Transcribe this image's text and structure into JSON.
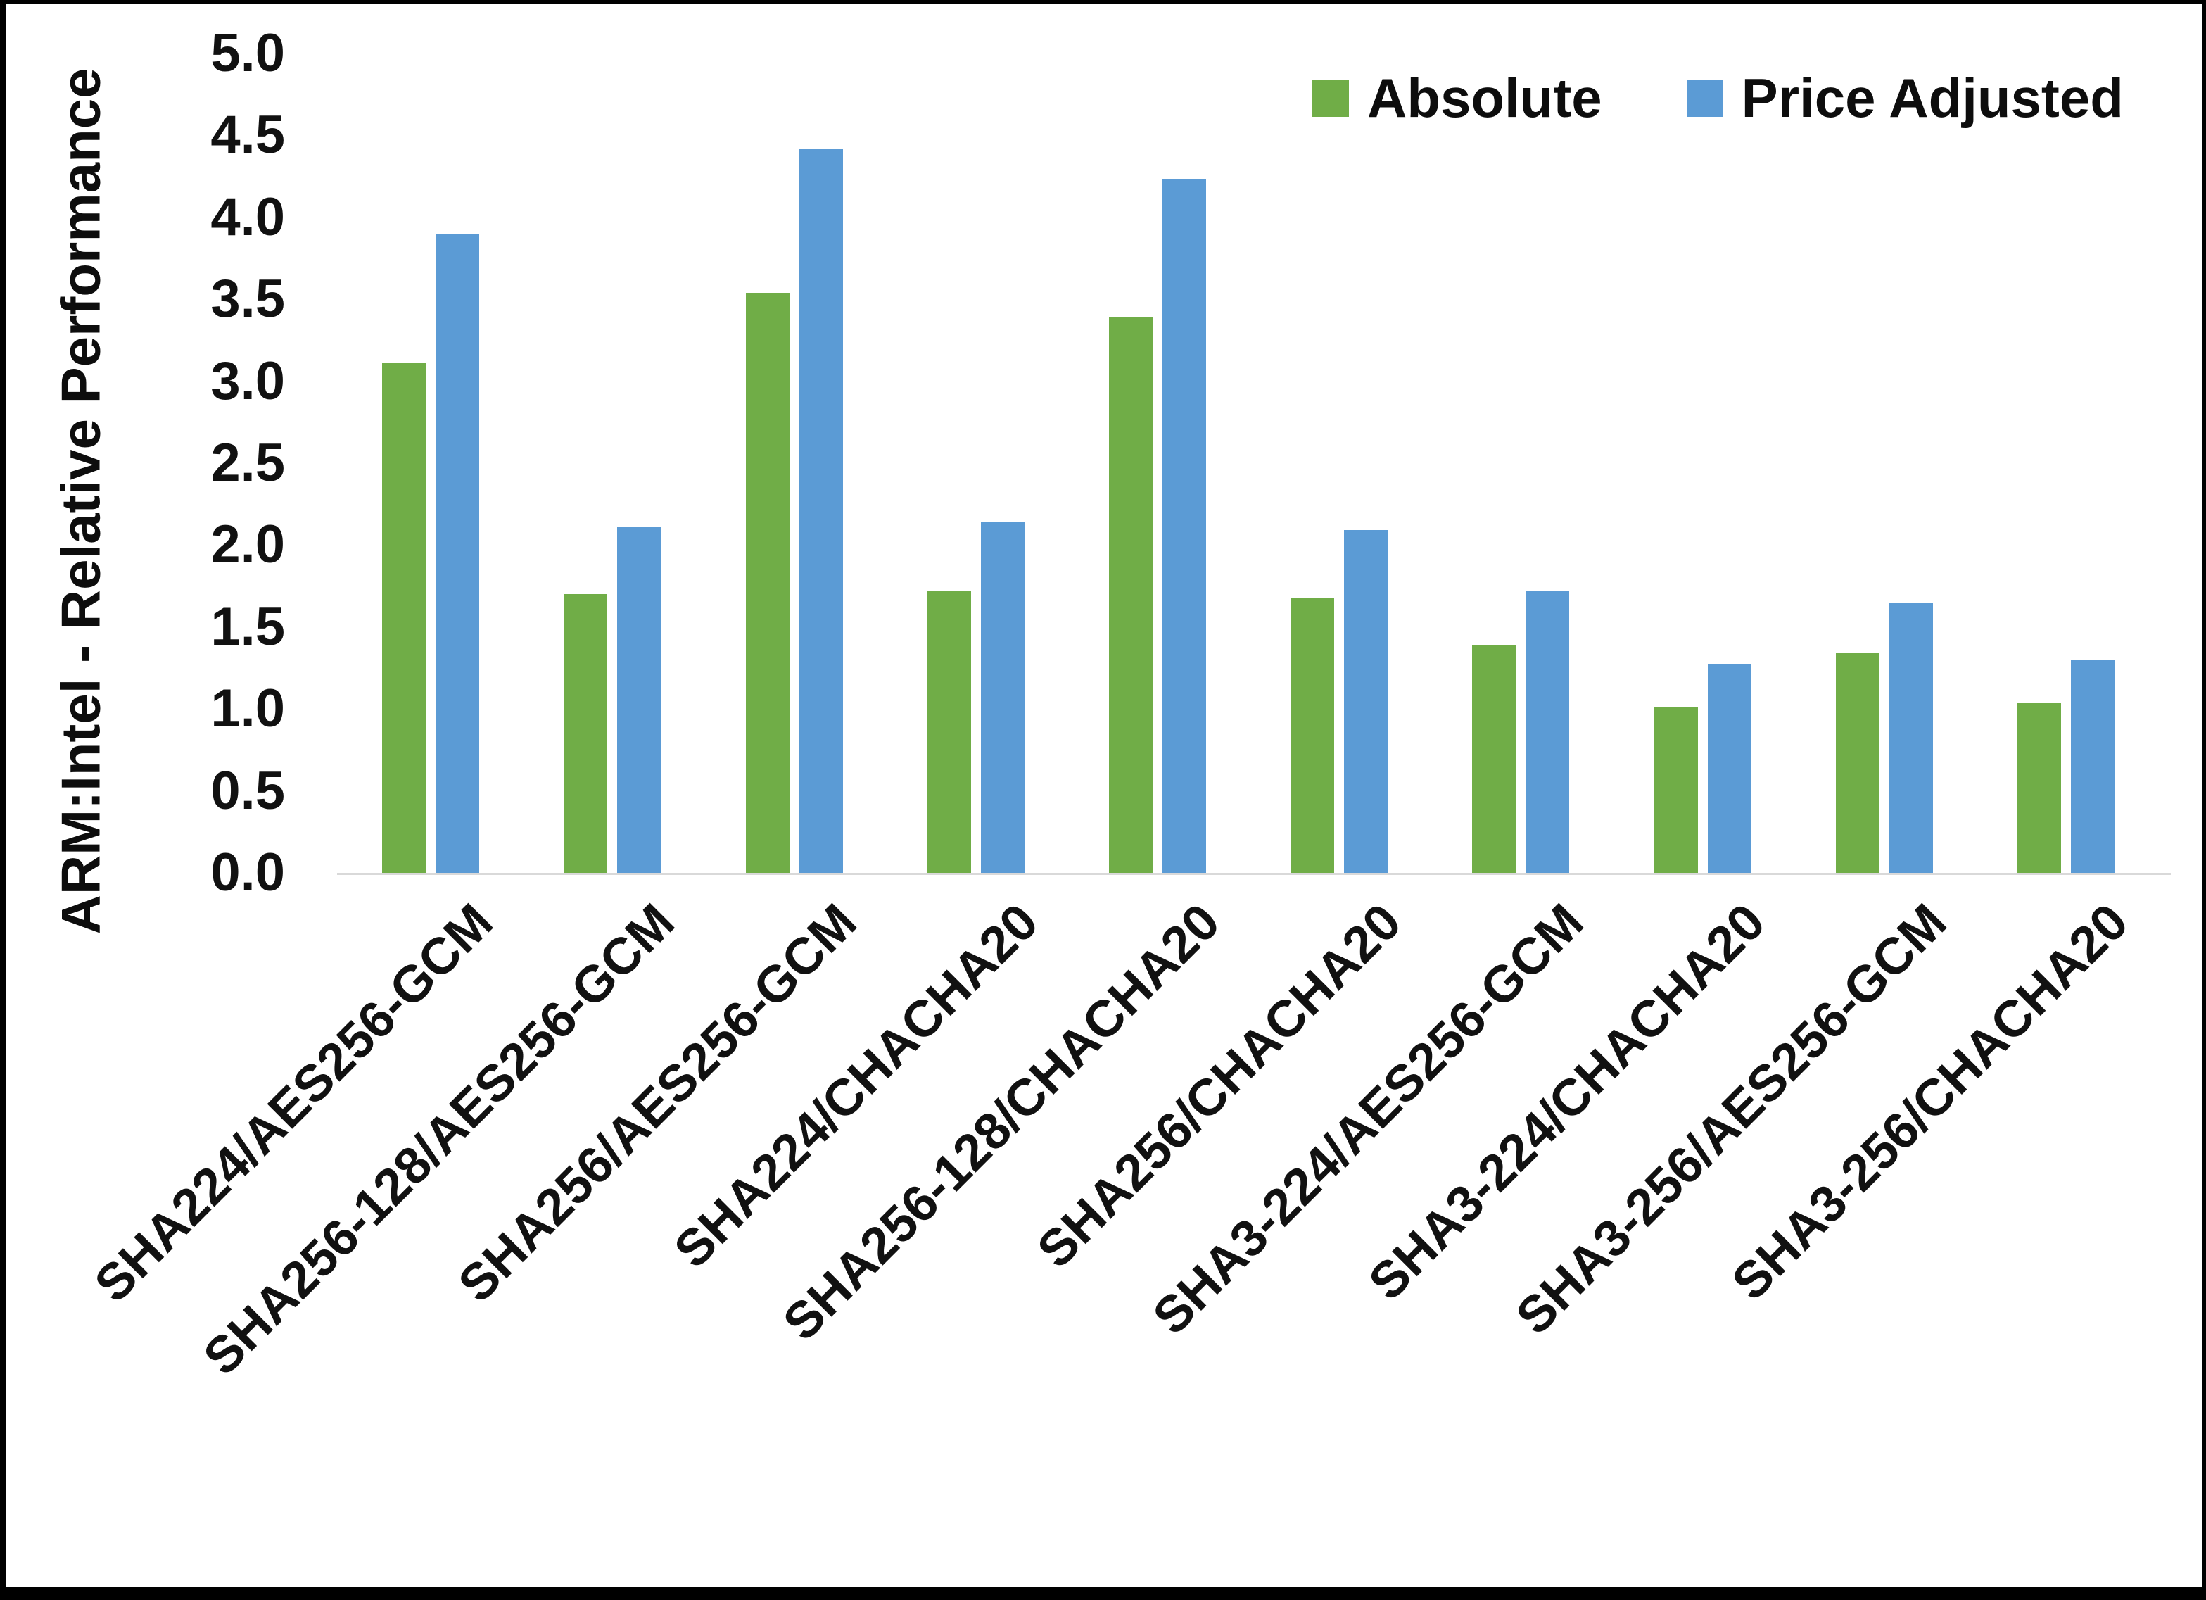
{
  "chart_data": {
    "type": "bar",
    "title": "",
    "xlabel": "",
    "ylabel": "ARM:Intel - Relative Performance",
    "ylim": [
      0,
      5
    ],
    "ytick_step": 0.5,
    "yticks": [
      "0.0",
      "0.5",
      "1.0",
      "1.5",
      "2.0",
      "2.5",
      "3.0",
      "3.5",
      "4.0",
      "4.5",
      "5.0"
    ],
    "grid": false,
    "legend_position": "top-right",
    "categories": [
      "SHA224/AES256-GCM",
      "SHA256-128/AES256-GCM",
      "SHA256/AES256-GCM",
      "SHA224/CHACHA20",
      "SHA256-128/CHACHA20",
      "SHA256/CHACHA20",
      "SHA3-224/AES256-GCM",
      "SHA3-224/CHACHA20",
      "SHA3-256/AES256-GCM",
      "SHA3-256/CHACHA20"
    ],
    "series": [
      {
        "name": "Absolute",
        "color": "#70AD47",
        "values": [
          3.11,
          1.7,
          3.54,
          1.72,
          3.39,
          1.68,
          1.39,
          1.01,
          1.34,
          1.04
        ]
      },
      {
        "name": "Price Adjusted",
        "color": "#5B9BD5",
        "values": [
          3.9,
          2.11,
          4.42,
          2.14,
          4.23,
          2.09,
          1.72,
          1.27,
          1.65,
          1.3
        ]
      }
    ]
  },
  "legend": {
    "items": [
      {
        "label": "Absolute",
        "color": "#70AD47"
      },
      {
        "label": "Price Adjusted",
        "color": "#5B9BD5"
      }
    ]
  },
  "axis_colors": {
    "baseline": "#d9d9d9",
    "text": "#111111"
  }
}
